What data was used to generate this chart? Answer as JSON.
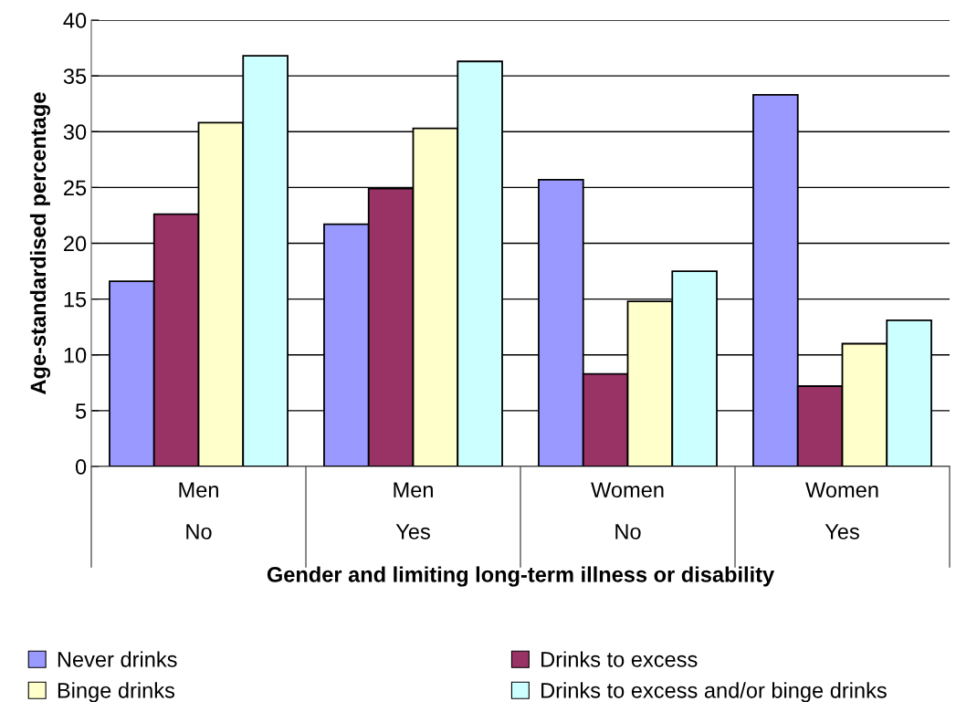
{
  "chart_data": {
    "type": "bar",
    "xlabel": "Gender and limiting long-term illness or disability",
    "ylabel": "Age-standardised percentage",
    "categories": [
      "Men\n\nNo",
      "Men\n\nYes",
      "Women\n\nNo",
      "Women\n\nYes"
    ],
    "series": [
      {
        "name": "Never drinks",
        "color": "#9999ff",
        "values": [
          16.6,
          21.7,
          25.7,
          33.3
        ]
      },
      {
        "name": "Drinks to excess",
        "color": "#993366",
        "values": [
          22.6,
          24.9,
          8.3,
          7.2
        ]
      },
      {
        "name": "Binge drinks",
        "color": "#ffffcc",
        "values": [
          30.8,
          30.3,
          14.8,
          11.0
        ]
      },
      {
        "name": "Drinks to excess and/or binge drinks",
        "color": "#ccffff",
        "values": [
          36.8,
          36.3,
          17.5,
          13.1
        ]
      }
    ],
    "ylim": [
      0,
      40
    ],
    "yticks": [
      0,
      5,
      10,
      15,
      20,
      25,
      30,
      35,
      40
    ],
    "grid": "y",
    "legend": "bottom"
  }
}
